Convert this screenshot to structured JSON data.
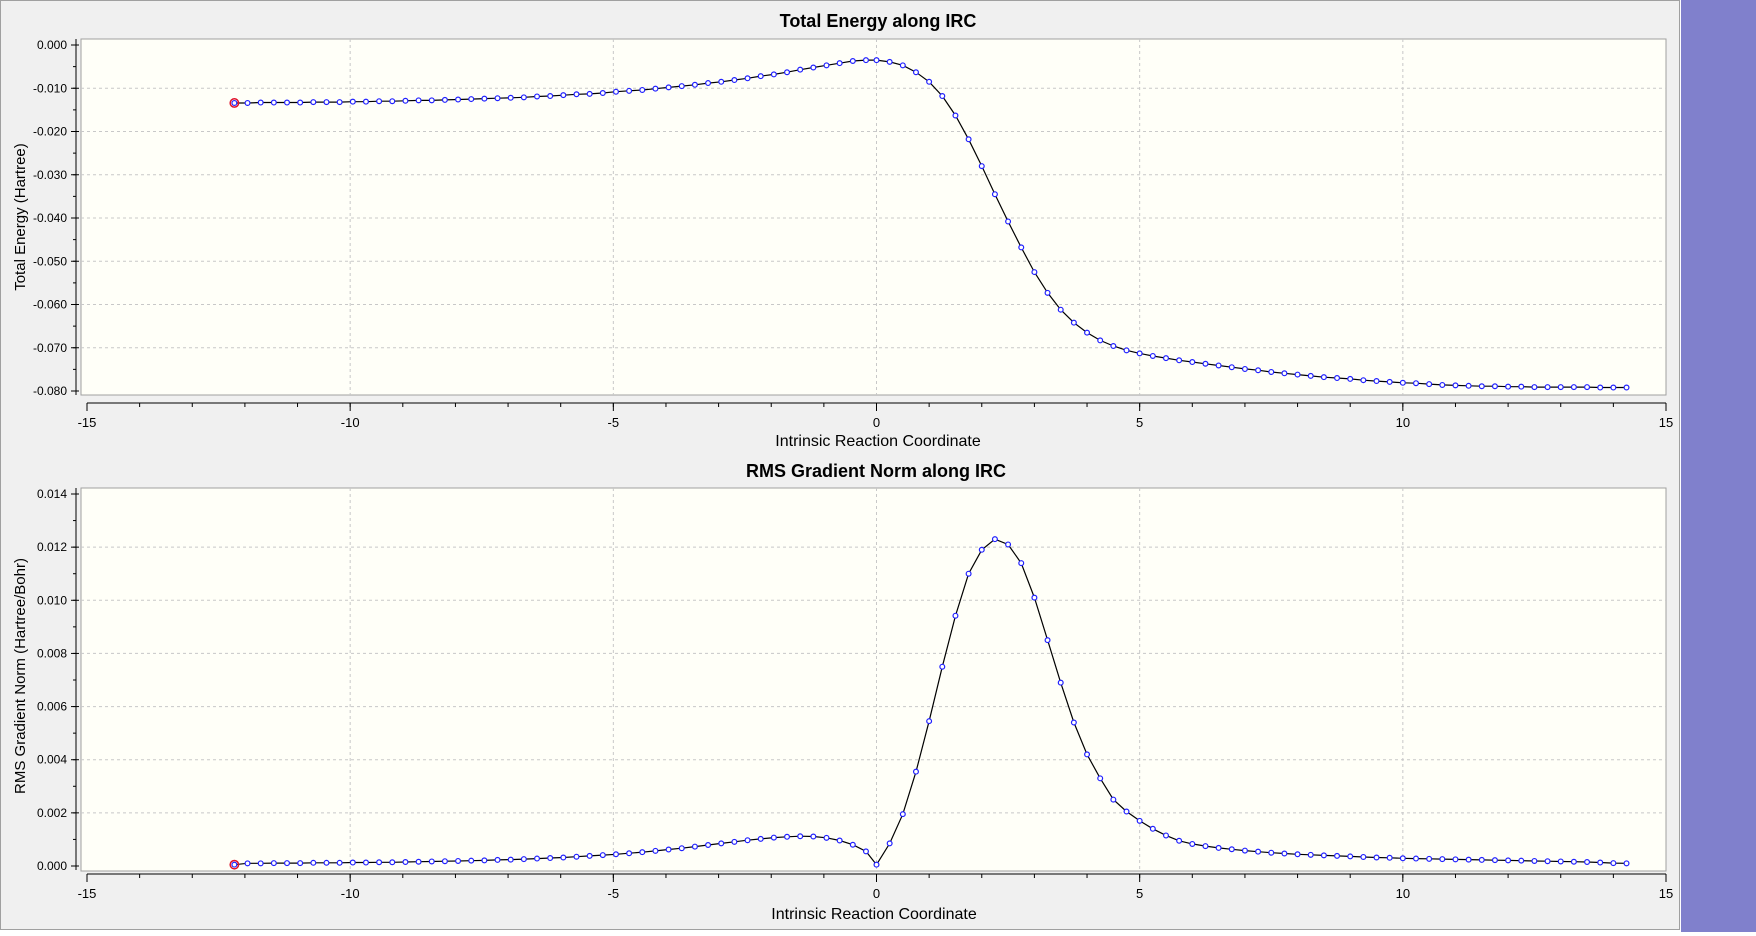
{
  "colors": {
    "plot_bg": "#fffff8",
    "curve": "#000000",
    "marker": "#2020ff",
    "start_marker": "#e0102a",
    "grid": "#c8c8c8",
    "side_strip": "#8080cc"
  },
  "chart_data": [
    {
      "type": "line",
      "title": "Total Energy along IRC",
      "xlabel": "Intrinsic Reaction Coordinate",
      "ylabel": "Total Energy (Hartree)",
      "xlim": [
        -15,
        15
      ],
      "ylim": [
        -0.08,
        0.0
      ],
      "x_ticks": [
        "-15",
        "-10",
        "-5",
        "0",
        "5",
        "10",
        "15"
      ],
      "y_ticks": [
        "0.000",
        "-0.010",
        "-0.020",
        "-0.030",
        "-0.040",
        "-0.050",
        "-0.060",
        "-0.070",
        "-0.080"
      ],
      "grid": true,
      "start_marker": [
        -12.2,
        -0.0134
      ],
      "x": [
        -12.2,
        -11.95,
        -11.7,
        -11.45,
        -11.2,
        -10.95,
        -10.7,
        -10.45,
        -10.2,
        -9.95,
        -9.7,
        -9.45,
        -9.2,
        -8.95,
        -8.7,
        -8.45,
        -8.2,
        -7.95,
        -7.7,
        -7.45,
        -7.2,
        -6.95,
        -6.7,
        -6.45,
        -6.2,
        -5.95,
        -5.7,
        -5.45,
        -5.2,
        -4.95,
        -4.7,
        -4.45,
        -4.2,
        -3.95,
        -3.7,
        -3.45,
        -3.2,
        -2.95,
        -2.7,
        -2.45,
        -2.2,
        -1.95,
        -1.7,
        -1.45,
        -1.2,
        -0.95,
        -0.7,
        -0.45,
        -0.2,
        0.0,
        0.25,
        0.5,
        0.75,
        1.0,
        1.25,
        1.5,
        1.75,
        2.0,
        2.25,
        2.5,
        2.75,
        3.0,
        3.25,
        3.5,
        3.75,
        4.0,
        4.25,
        4.5,
        4.75,
        5.0,
        5.25,
        5.5,
        5.75,
        6.0,
        6.25,
        6.5,
        6.75,
        7.0,
        7.25,
        7.5,
        7.75,
        8.0,
        8.25,
        8.5,
        8.75,
        9.0,
        9.25,
        9.5,
        9.75,
        10.0,
        10.25,
        10.5,
        10.75,
        11.0,
        11.25,
        11.5,
        11.75,
        12.0,
        12.25,
        12.5,
        12.75,
        13.0,
        13.25,
        13.5,
        13.75,
        14.0,
        14.25
      ],
      "y": [
        -0.0134,
        -0.0134,
        -0.0133,
        -0.0133,
        -0.0133,
        -0.0133,
        -0.0132,
        -0.0132,
        -0.0132,
        -0.0131,
        -0.0131,
        -0.013,
        -0.013,
        -0.0129,
        -0.0128,
        -0.0128,
        -0.0127,
        -0.0126,
        -0.0125,
        -0.0124,
        -0.0123,
        -0.0122,
        -0.0121,
        -0.0119,
        -0.0118,
        -0.0116,
        -0.0114,
        -0.0113,
        -0.0111,
        -0.0108,
        -0.0106,
        -0.0104,
        -0.0101,
        -0.0098,
        -0.0095,
        -0.0092,
        -0.0088,
        -0.0085,
        -0.0081,
        -0.0077,
        -0.0072,
        -0.0068,
        -0.0063,
        -0.0057,
        -0.0052,
        -0.0047,
        -0.0042,
        -0.0037,
        -0.0035,
        -0.0035,
        -0.0039,
        -0.0047,
        -0.0063,
        -0.0085,
        -0.0118,
        -0.0163,
        -0.0218,
        -0.028,
        -0.0345,
        -0.0408,
        -0.0468,
        -0.0525,
        -0.0573,
        -0.0612,
        -0.0642,
        -0.0665,
        -0.0683,
        -0.0696,
        -0.0706,
        -0.0713,
        -0.0719,
        -0.0724,
        -0.0729,
        -0.0733,
        -0.0737,
        -0.0741,
        -0.0745,
        -0.0749,
        -0.0752,
        -0.0756,
        -0.0759,
        -0.0762,
        -0.0765,
        -0.0768,
        -0.077,
        -0.0772,
        -0.0775,
        -0.0777,
        -0.0779,
        -0.0781,
        -0.0782,
        -0.0784,
        -0.0786,
        -0.0787,
        -0.0788,
        -0.0789,
        -0.0789,
        -0.079,
        -0.079,
        -0.0791,
        -0.0791,
        -0.0791,
        -0.0791,
        -0.0791,
        -0.0792,
        -0.0792,
        -0.0792
      ]
    },
    {
      "type": "line",
      "title": "RMS Gradient Norm along IRC",
      "xlabel": "Intrinsic Reaction Coordinate",
      "ylabel": "RMS Gradient Norm (Hartree/Bohr)",
      "xlim": [
        -15,
        15
      ],
      "ylim": [
        0.0,
        0.014
      ],
      "x_ticks": [
        "-15",
        "-10",
        "-5",
        "0",
        "5",
        "10",
        "15"
      ],
      "y_ticks": [
        "0.014",
        "0.012",
        "0.010",
        "0.008",
        "0.006",
        "0.004",
        "0.002",
        "0.000"
      ],
      "grid": true,
      "start_marker": [
        -12.2,
        5e-05
      ],
      "x": [
        -12.2,
        -11.95,
        -11.7,
        -11.45,
        -11.2,
        -10.95,
        -10.7,
        -10.45,
        -10.2,
        -9.95,
        -9.7,
        -9.45,
        -9.2,
        -8.95,
        -8.7,
        -8.45,
        -8.2,
        -7.95,
        -7.7,
        -7.45,
        -7.2,
        -6.95,
        -6.7,
        -6.45,
        -6.2,
        -5.95,
        -5.7,
        -5.45,
        -5.2,
        -4.95,
        -4.7,
        -4.45,
        -4.2,
        -3.95,
        -3.7,
        -3.45,
        -3.2,
        -2.95,
        -2.7,
        -2.45,
        -2.2,
        -1.95,
        -1.7,
        -1.45,
        -1.2,
        -0.95,
        -0.7,
        -0.45,
        -0.2,
        0.0,
        0.25,
        0.5,
        0.75,
        1.0,
        1.25,
        1.5,
        1.75,
        2.0,
        2.25,
        2.5,
        2.75,
        3.0,
        3.25,
        3.5,
        3.75,
        4.0,
        4.25,
        4.5,
        4.75,
        5.0,
        5.25,
        5.5,
        5.75,
        6.0,
        6.25,
        6.5,
        6.75,
        7.0,
        7.25,
        7.5,
        7.75,
        8.0,
        8.25,
        8.5,
        8.75,
        9.0,
        9.25,
        9.5,
        9.75,
        10.0,
        10.25,
        10.5,
        10.75,
        11.0,
        11.25,
        11.5,
        11.75,
        12.0,
        12.25,
        12.5,
        12.75,
        13.0,
        13.25,
        13.5,
        13.75,
        14.0,
        14.25
      ],
      "y": [
        5e-05,
        0.0001,
        0.0001,
        0.00011,
        0.00011,
        0.00011,
        0.00012,
        0.00012,
        0.00012,
        0.00013,
        0.00013,
        0.00014,
        0.00014,
        0.00015,
        0.00016,
        0.00017,
        0.00018,
        0.00019,
        0.0002,
        0.00021,
        0.00023,
        0.00024,
        0.00026,
        0.00028,
        0.0003,
        0.00032,
        0.00035,
        0.00038,
        0.00041,
        0.00044,
        0.00048,
        0.00052,
        0.00057,
        0.00062,
        0.00067,
        0.00073,
        0.00079,
        0.00085,
        0.00091,
        0.00097,
        0.00102,
        0.00107,
        0.0011,
        0.00112,
        0.00111,
        0.00106,
        0.00096,
        0.0008,
        0.00055,
        5e-05,
        0.00085,
        0.00195,
        0.00355,
        0.00545,
        0.0075,
        0.00942,
        0.011,
        0.0119,
        0.0123,
        0.0121,
        0.0114,
        0.0101,
        0.0085,
        0.0069,
        0.0054,
        0.0042,
        0.0033,
        0.0025,
        0.00205,
        0.0017,
        0.0014,
        0.00115,
        0.00095,
        0.00083,
        0.00075,
        0.00068,
        0.00063,
        0.00058,
        0.00054,
        0.0005,
        0.00047,
        0.00044,
        0.00042,
        0.0004,
        0.00038,
        0.00036,
        0.00034,
        0.00032,
        0.00031,
        0.00029,
        0.00028,
        0.00027,
        0.00026,
        0.00025,
        0.00024,
        0.00023,
        0.00022,
        0.00021,
        0.0002,
        0.00019,
        0.00018,
        0.00017,
        0.00016,
        0.00015,
        0.00013,
        0.00011,
        0.0001
      ]
    }
  ]
}
